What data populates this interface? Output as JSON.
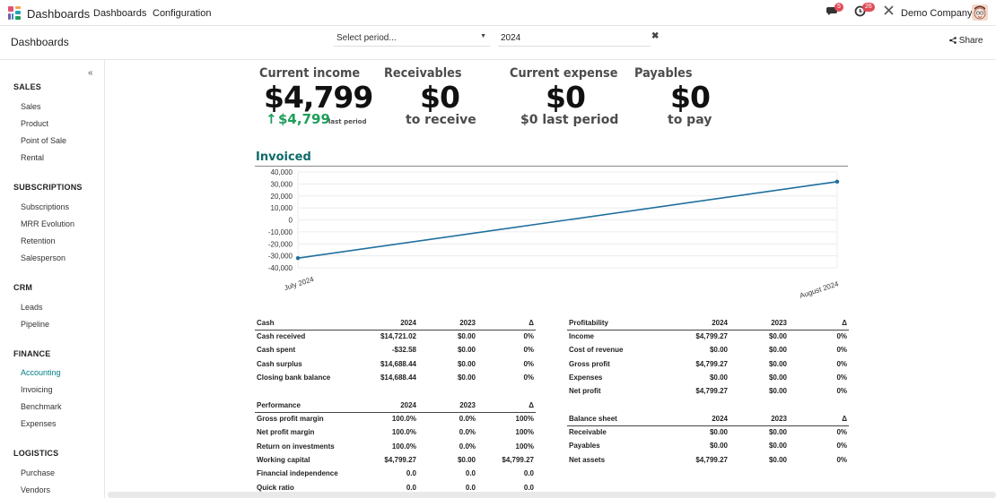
{
  "navbar": {
    "app_title": "Dashboards",
    "menu": [
      "Dashboards",
      "Configuration"
    ],
    "messages_count": "5",
    "activities_count": "26",
    "company": "Demo Company",
    "icons": [
      "chat-icon",
      "clock-icon",
      "tools-icon"
    ]
  },
  "control_panel": {
    "title": "Dashboards",
    "period_placeholder": "Select period...",
    "year": "2024",
    "clear": "✖",
    "share": "Share"
  },
  "sidebar": {
    "collapse": "«",
    "sections": [
      {
        "title": "SALES",
        "items": [
          "Sales",
          "Product",
          "Point of Sale",
          "Rental"
        ]
      },
      {
        "title": "SUBSCRIPTIONS",
        "items": [
          "Subscriptions",
          "MRR Evolution",
          "Retention",
          "Salesperson"
        ]
      },
      {
        "title": "CRM",
        "items": [
          "Leads",
          "Pipeline"
        ]
      },
      {
        "title": "FINANCE",
        "items": [
          "Accounting",
          "Invoicing",
          "Benchmark",
          "Expenses"
        ]
      },
      {
        "title": "LOGISTICS",
        "items": [
          "Purchase",
          "Vendors"
        ]
      }
    ],
    "active_item": "Accounting"
  },
  "kpis": [
    {
      "title": "Current income",
      "value": "$4,799",
      "sub_value": "$4,799",
      "sub_label": "last period",
      "trend": "up"
    },
    {
      "title": "Receivables",
      "value": "$0",
      "sub": "to receive"
    },
    {
      "title": "Current expense",
      "value": "$0",
      "sub": "$0 last period"
    },
    {
      "title": "Payables",
      "value": "$0",
      "sub": "to pay"
    }
  ],
  "chart_data": {
    "type": "line",
    "title": "Invoiced",
    "x": [
      "July 2024",
      "August 2024"
    ],
    "series": [
      {
        "values": [
          -31900,
          31900
        ],
        "color": "#1f6f9e"
      }
    ],
    "yticks": [
      40000,
      30000,
      20000,
      10000,
      0,
      -10000,
      -20000,
      -30000,
      -40000
    ],
    "ytick_labels": [
      "40,000",
      "30,000",
      "20,000",
      "10,000",
      "0",
      "-10,000",
      "-20,000",
      "-30,000",
      "-40,000"
    ],
    "ylim": [
      -40000,
      40000
    ],
    "grid": true
  },
  "tables": {
    "cash": {
      "headers": [
        "Cash",
        "2024",
        "2023",
        "Δ"
      ],
      "rows": [
        [
          "Cash received",
          "$14,721.02",
          "$0.00",
          "0%"
        ],
        [
          "Cash spent",
          "-$32.58",
          "$0.00",
          "0%"
        ],
        [
          "Cash surplus",
          "$14,688.44",
          "$0.00",
          "0%"
        ],
        [
          "Closing bank balance",
          "$14,688.44",
          "$0.00",
          "0%"
        ]
      ]
    },
    "profitability": {
      "headers": [
        "Profitability",
        "2024",
        "2023",
        "Δ"
      ],
      "rows": [
        [
          "Income",
          "$4,799.27",
          "$0.00",
          "0%"
        ],
        [
          "Cost of revenue",
          "$0.00",
          "$0.00",
          "0%"
        ],
        [
          "Gross profit",
          "$4,799.27",
          "$0.00",
          "0%"
        ],
        [
          "Expenses",
          "$0.00",
          "$0.00",
          "0%"
        ],
        [
          "Net profit",
          "$4,799.27",
          "$0.00",
          "0%"
        ]
      ]
    },
    "performance": {
      "headers": [
        "Performance",
        "2024",
        "2023",
        "Δ"
      ],
      "rows": [
        [
          "Gross profit margin",
          "100.0%",
          "0.0%",
          "100%"
        ],
        [
          "Net profit margin",
          "100.0%",
          "0.0%",
          "100%"
        ],
        [
          "Return on investments",
          "100.0%",
          "0.0%",
          "100%"
        ],
        [
          "Working capital",
          "$4,799.27",
          "$0.00",
          "$4,799.27"
        ],
        [
          "Financial independence",
          "0.0",
          "0.0",
          "0.0"
        ],
        [
          "Quick ratio",
          "0.0",
          "0.0",
          "0.0"
        ]
      ]
    },
    "balance": {
      "headers": [
        "Balance sheet",
        "2024",
        "2023",
        "Δ"
      ],
      "rows": [
        [
          "Receivable",
          "$0.00",
          "$0.00",
          "0%"
        ],
        [
          "Payables",
          "$0.00",
          "$0.00",
          "0%"
        ],
        [
          "Net assets",
          "$4,799.27",
          "$0.00",
          "0%"
        ]
      ]
    }
  }
}
